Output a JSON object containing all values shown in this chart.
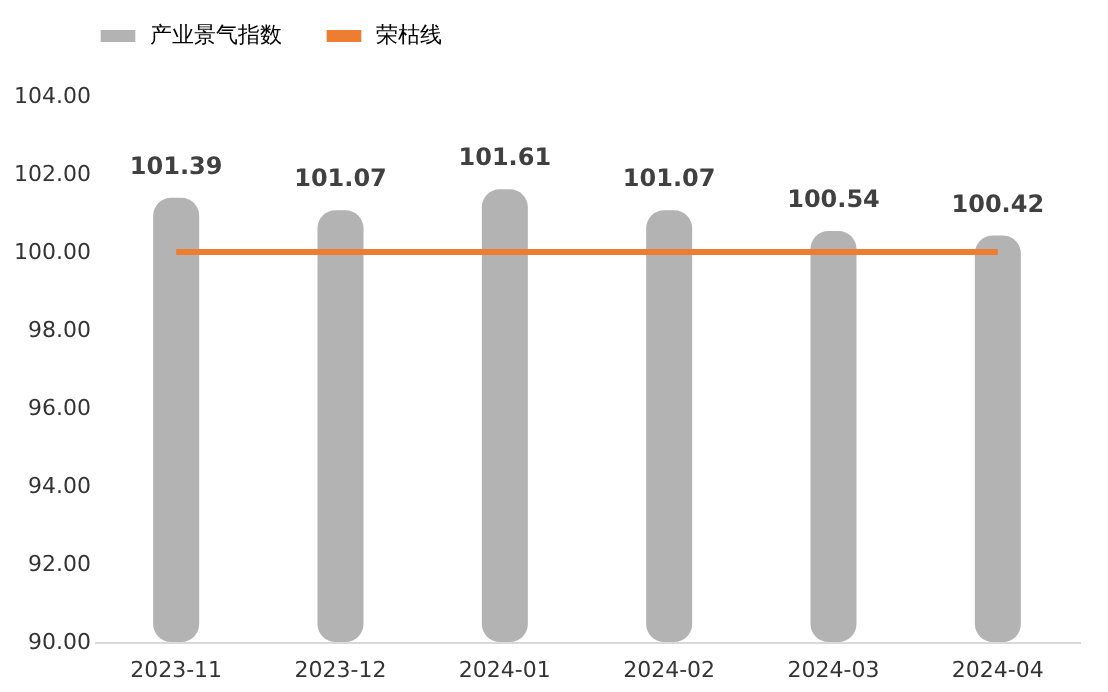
{
  "chart_data": {
    "type": "bar",
    "categories": [
      "2023-11",
      "2023-12",
      "2024-01",
      "2024-02",
      "2024-03",
      "2024-04"
    ],
    "series": [
      {
        "name": "产业景气指数",
        "color": "#b3b3b3",
        "values": [
          101.39,
          101.07,
          101.61,
          101.07,
          100.54,
          100.42
        ],
        "value_labels": [
          "101.39",
          "101.07",
          "101.61",
          "101.07",
          "100.54",
          "100.42"
        ]
      },
      {
        "name": "荣枯线",
        "type": "line",
        "color": "#ed7d31",
        "values": [
          100,
          100,
          100,
          100,
          100,
          100
        ]
      }
    ],
    "ylim": [
      90,
      104
    ],
    "yticks": [
      {
        "value": 90,
        "label": "90.00"
      },
      {
        "value": 92,
        "label": "92.00"
      },
      {
        "value": 94,
        "label": "94.00"
      },
      {
        "value": 96,
        "label": "96.00"
      },
      {
        "value": 98,
        "label": "98.00"
      },
      {
        "value": 100,
        "label": "100.00"
      },
      {
        "value": 102,
        "label": "102.00"
      },
      {
        "value": 104,
        "label": "104.00"
      }
    ],
    "grid": false,
    "legend": "top"
  }
}
